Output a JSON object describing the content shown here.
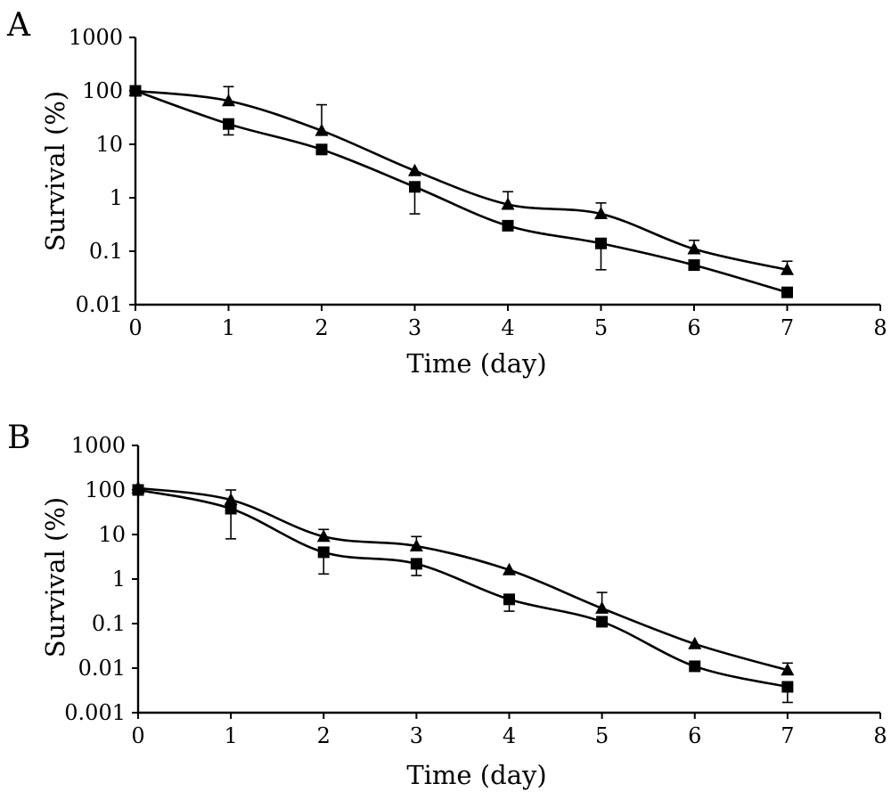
{
  "chart_data": [
    {
      "type": "line",
      "panel_label": "A",
      "xlabel": "Time (day)",
      "ylabel": "Survival (%)",
      "xlim": [
        0,
        8
      ],
      "ylim": [
        0.01,
        1000
      ],
      "yscale": "log",
      "x_ticks": [
        "0",
        "1",
        "2",
        "3",
        "4",
        "5",
        "6",
        "7",
        "8"
      ],
      "y_ticks": [
        "1000",
        "100",
        "10",
        "1",
        "0.1",
        "0.01"
      ],
      "grid": false,
      "series": [
        {
          "marker": "triangle",
          "x": [
            0,
            1,
            2,
            3,
            4,
            5,
            6,
            7
          ],
          "y": [
            100,
            65,
            18,
            3.2,
            0.75,
            0.5,
            0.11,
            0.045
          ],
          "err_upper": [
            null,
            120,
            55,
            null,
            1.3,
            0.8,
            0.16,
            0.065
          ]
        },
        {
          "marker": "square",
          "x": [
            0,
            1,
            2,
            3,
            4,
            5,
            6,
            7
          ],
          "y": [
            100,
            24,
            8,
            1.6,
            0.3,
            0.14,
            0.055,
            0.017
          ],
          "err_lower": [
            null,
            15,
            null,
            0.5,
            null,
            0.045,
            null,
            null
          ]
        }
      ]
    },
    {
      "type": "line",
      "panel_label": "B",
      "xlabel": "Time (day)",
      "ylabel": "Survival (%)",
      "xlim": [
        0,
        8
      ],
      "ylim": [
        0.001,
        1000
      ],
      "yscale": "log",
      "x_ticks": [
        "0",
        "1",
        "2",
        "3",
        "4",
        "5",
        "6",
        "7",
        "8"
      ],
      "y_ticks": [
        "1000",
        "100",
        "10",
        "1",
        "0.1",
        "0.01",
        "0.001"
      ],
      "grid": false,
      "series": [
        {
          "marker": "triangle",
          "x": [
            0,
            1,
            2,
            3,
            4,
            5,
            6,
            7
          ],
          "y": [
            110,
            60,
            9,
            5.5,
            1.6,
            0.22,
            0.035,
            0.009
          ],
          "err_upper": [
            null,
            100,
            13,
            9,
            null,
            0.5,
            null,
            0.013
          ]
        },
        {
          "marker": "square",
          "x": [
            0,
            1,
            2,
            3,
            4,
            5,
            6,
            7
          ],
          "y": [
            100,
            38,
            4,
            2.2,
            0.35,
            0.11,
            0.011,
            0.0038
          ],
          "err_lower": [
            null,
            8,
            1.3,
            1.2,
            0.19,
            null,
            null,
            0.0017
          ]
        }
      ]
    }
  ]
}
